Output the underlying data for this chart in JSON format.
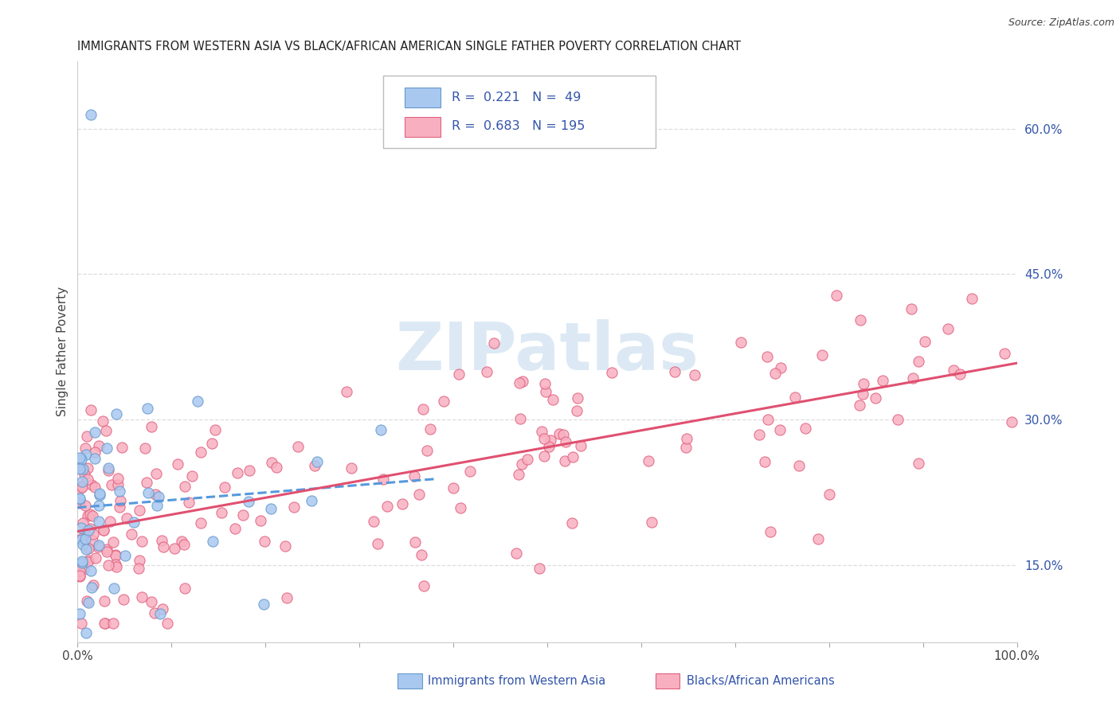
{
  "title": "IMMIGRANTS FROM WESTERN ASIA VS BLACK/AFRICAN AMERICAN SINGLE FATHER POVERTY CORRELATION CHART",
  "source": "Source: ZipAtlas.com",
  "ylabel": "Single Father Poverty",
  "right_yticks": [
    0.15,
    0.3,
    0.45,
    0.6
  ],
  "right_ytick_labels": [
    "15.0%",
    "30.0%",
    "45.0%",
    "60.0%"
  ],
  "color_blue_fill": "#A8C8F0",
  "color_blue_edge": "#6699CC",
  "color_pink_fill": "#F8B0C0",
  "color_pink_edge": "#E06080",
  "color_trendline_blue": "#5599DD",
  "color_trendline_pink": "#E05070",
  "color_legend_text": "#3355AA",
  "watermark_color": "#C0D8EC",
  "watermark_text": "ZIPatlas",
  "legend_label1": "R =  0.221   N =  49",
  "legend_label2": "R =  0.683   N = 195",
  "bottom_label1": "Immigrants from Western Asia",
  "bottom_label2": "Blacks/African Americans",
  "ylim_min": 0.07,
  "ylim_max": 0.67,
  "xlim_min": 0.0,
  "xlim_max": 1.0,
  "seed": 42
}
